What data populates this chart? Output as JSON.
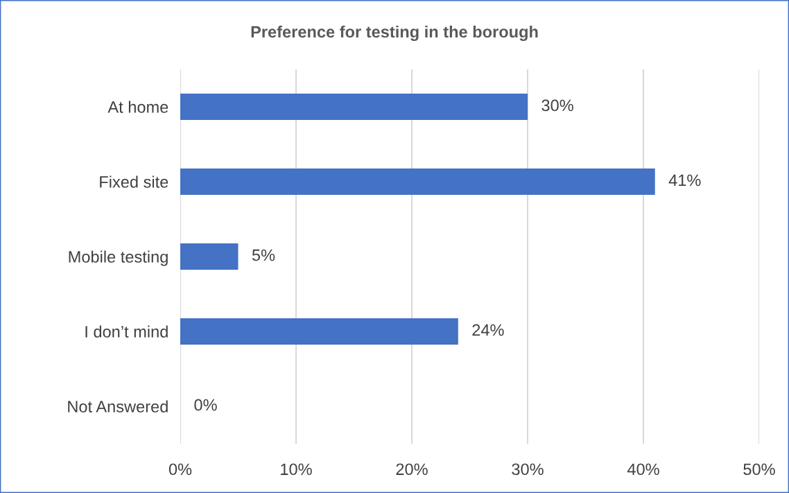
{
  "chart_data": {
    "type": "bar",
    "orientation": "horizontal",
    "title": "Preference for testing in the borough",
    "categories": [
      "At home",
      "Fixed site",
      "Mobile testing",
      "I don’t mind",
      "Not Answered"
    ],
    "values": [
      30,
      41,
      5,
      24,
      0
    ],
    "value_labels": [
      "30%",
      "41%",
      "5%",
      "24%",
      "0%"
    ],
    "color": "#4472c4",
    "xlim": [
      0,
      50
    ],
    "xticks": [
      {
        "value": 0,
        "label": "0%"
      },
      {
        "value": 10,
        "label": "10%"
      },
      {
        "value": 20,
        "label": "20%"
      },
      {
        "value": 30,
        "label": "30%"
      },
      {
        "value": 40,
        "label": "40%"
      },
      {
        "value": 50,
        "label": "50%"
      }
    ],
    "grid": "x",
    "legend": false
  }
}
